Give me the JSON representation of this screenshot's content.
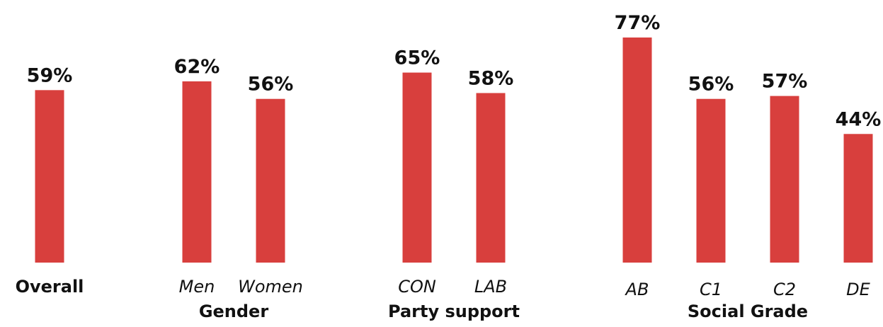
{
  "chart_data": {
    "type": "bar",
    "ylim": [
      0,
      80
    ],
    "bar_color": "#d83f3d",
    "value_suffix": "%",
    "groups": [
      {
        "label": "",
        "categories": [
          {
            "label": "Overall",
            "value": 59,
            "style": "bold"
          }
        ]
      },
      {
        "label": "Gender",
        "categories": [
          {
            "label": "Men",
            "value": 62
          },
          {
            "label": "Women",
            "value": 56
          }
        ]
      },
      {
        "label": "Party support",
        "categories": [
          {
            "label": "CON",
            "value": 65
          },
          {
            "label": "LAB",
            "value": 58
          }
        ]
      },
      {
        "label": "Social Grade",
        "categories": [
          {
            "label": "AB",
            "value": 77
          },
          {
            "label": "C1",
            "value": 56
          },
          {
            "label": "C2",
            "value": 57
          },
          {
            "label": "DE",
            "value": 44
          }
        ]
      }
    ]
  }
}
